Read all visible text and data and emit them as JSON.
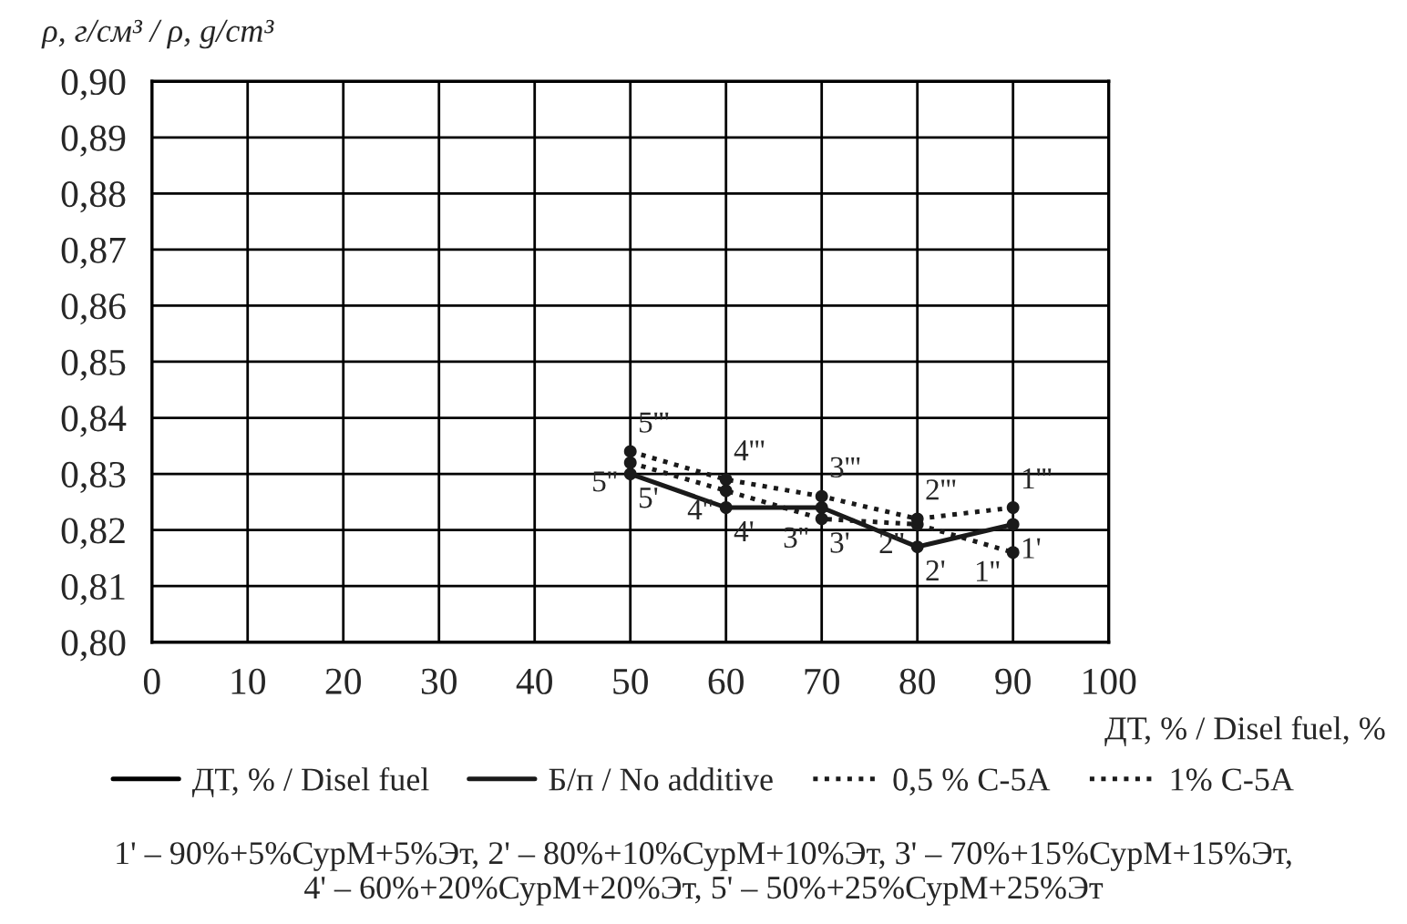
{
  "chart_data": {
    "type": "line",
    "ylabel": "ρ, г/см³ / ρ, g/cm³",
    "xlabel": "ДТ, % / Disel fuel, %",
    "x": [
      50,
      60,
      70,
      80,
      90
    ],
    "xlim": [
      0,
      100
    ],
    "xticks": [
      0,
      10,
      20,
      30,
      40,
      50,
      60,
      70,
      80,
      90,
      100
    ],
    "ylim": [
      0.8,
      0.9
    ],
    "yticks": [
      {
        "value": 0.8,
        "label": "0,80"
      },
      {
        "value": 0.81,
        "label": "0,81"
      },
      {
        "value": 0.82,
        "label": "0,82"
      },
      {
        "value": 0.83,
        "label": "0,83"
      },
      {
        "value": 0.84,
        "label": "0,84"
      },
      {
        "value": 0.85,
        "label": "0,85"
      },
      {
        "value": 0.86,
        "label": "0,86"
      },
      {
        "value": 0.87,
        "label": "0,87"
      },
      {
        "value": 0.88,
        "label": "0,88"
      },
      {
        "value": 0.89,
        "label": "0,89"
      },
      {
        "value": 0.9,
        "label": "0,90"
      }
    ],
    "grid": true,
    "legend": "bottom",
    "marker": "circle",
    "series": [
      {
        "name": "ДТ, % / Disel fuel",
        "color": "#000000",
        "line_style": "solid",
        "values": [
          null,
          null,
          null,
          null,
          null
        ]
      },
      {
        "name": "Б/п / No additive",
        "color": "#1a1a1a",
        "line_style": "solid",
        "values": [
          0.83,
          0.824,
          0.824,
          0.817,
          0.821
        ]
      },
      {
        "name": "0,5 % С-5А",
        "color": "#1a1a1a",
        "line_style": "dotted",
        "values": [
          0.832,
          0.827,
          0.822,
          0.821,
          0.816
        ]
      },
      {
        "name": "1% С-5А",
        "color": "#1a1a1a",
        "line_style": "dotted",
        "values": [
          0.834,
          0.829,
          0.826,
          0.822,
          0.824
        ]
      }
    ],
    "annotations": [
      {
        "text": "5'",
        "x": 50,
        "y": 0.83
      },
      {
        "text": "4'",
        "x": 60,
        "y": 0.824
      },
      {
        "text": "3'",
        "x": 70,
        "y": 0.822
      },
      {
        "text": "2'",
        "x": 80,
        "y": 0.817
      },
      {
        "text": "1'",
        "x": 90,
        "y": 0.821
      },
      {
        "text": "5''",
        "x": 50,
        "y": 0.832
      },
      {
        "text": "4''",
        "x": 60,
        "y": 0.827
      },
      {
        "text": "3''",
        "x": 70,
        "y": 0.822
      },
      {
        "text": "2''",
        "x": 80,
        "y": 0.821
      },
      {
        "text": "1''",
        "x": 90,
        "y": 0.816
      },
      {
        "text": "5'''",
        "x": 50,
        "y": 0.834
      },
      {
        "text": "4'''",
        "x": 60,
        "y": 0.829
      },
      {
        "text": "3'''",
        "x": 70,
        "y": 0.826
      },
      {
        "text": "2'''",
        "x": 80,
        "y": 0.822
      },
      {
        "text": "1'''",
        "x": 90,
        "y": 0.824
      },
      "1' – 90%+5%СурМ+5%Эт, 2' – 80%+10%СурМ+10%Эт, 3' – 70%+15%СурМ+15%Эт,\n4' – 60%+20%СурМ+20%Эт, 5' – 50%+25%СурМ+25%Эт"
    ]
  }
}
